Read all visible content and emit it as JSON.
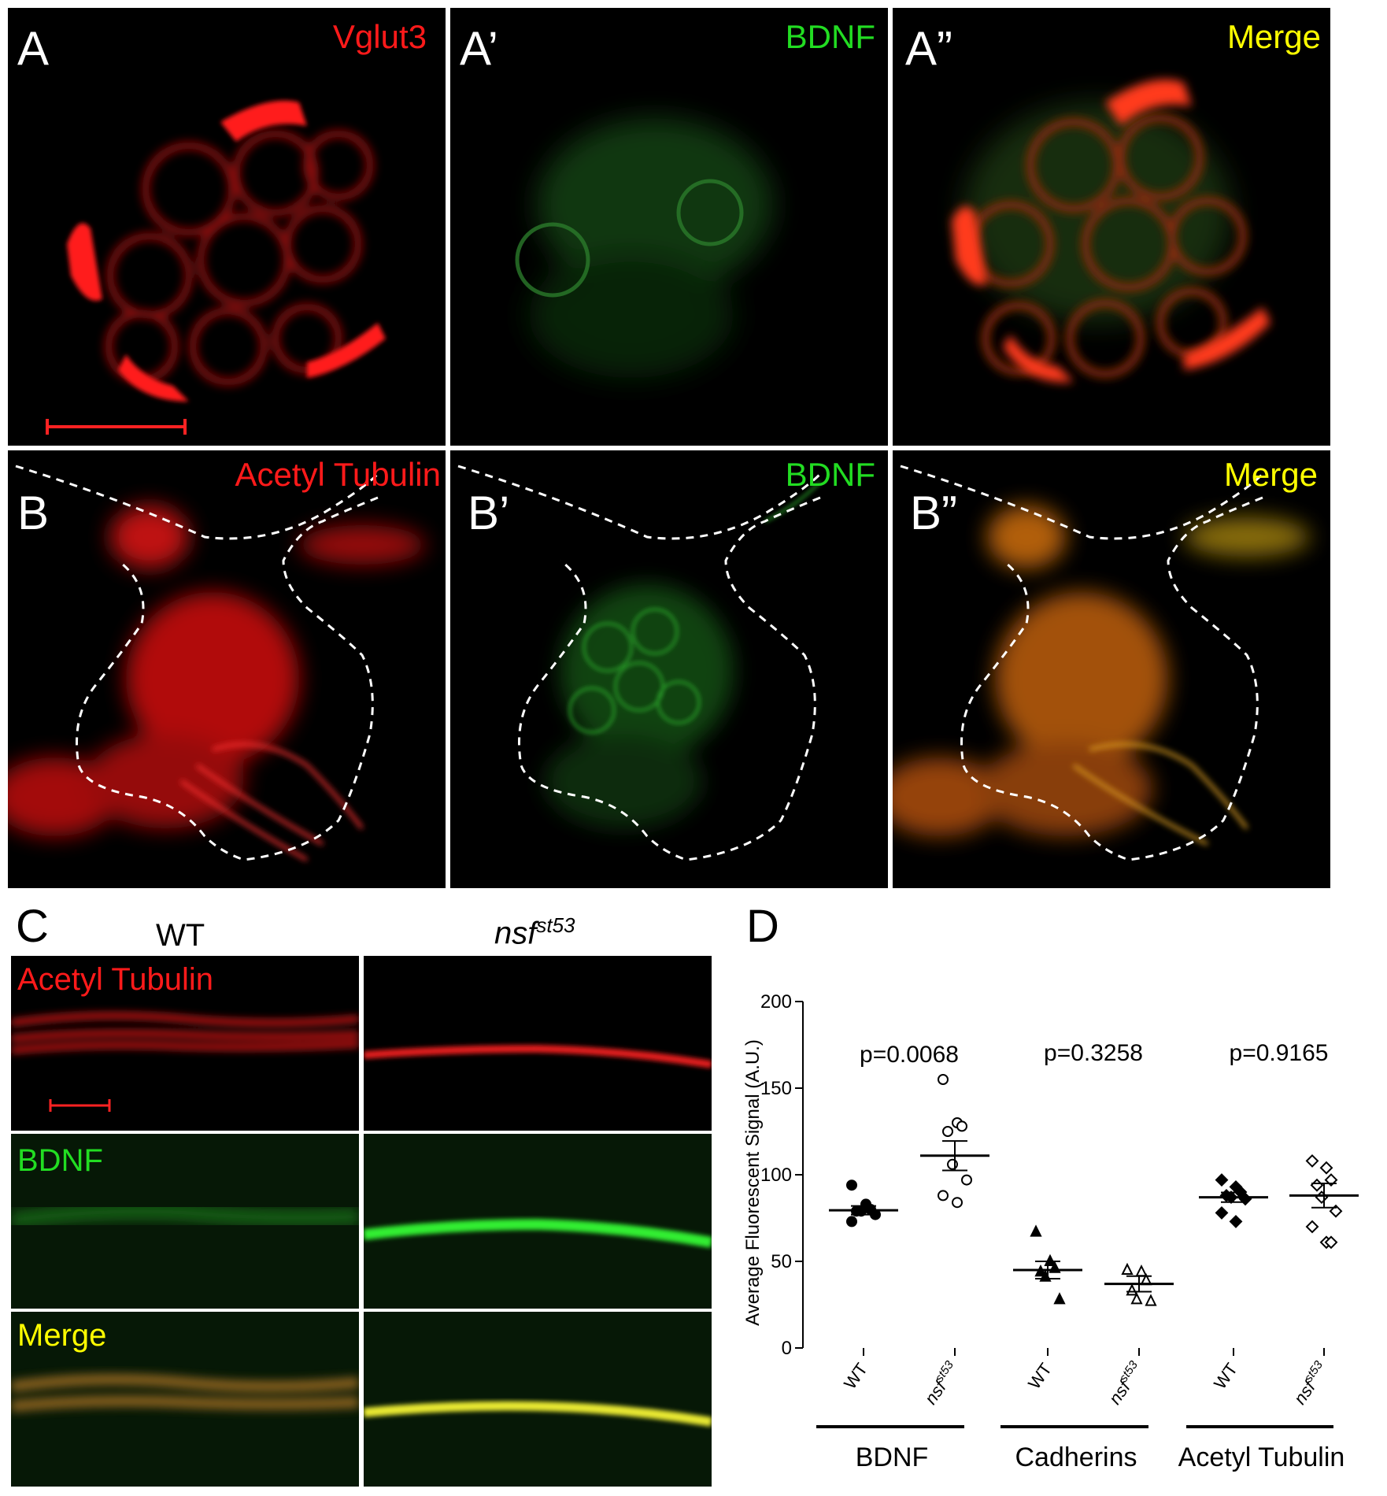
{
  "panel_A": {
    "letter": "A",
    "channel": "Vglut3",
    "color": "#ff1a1a"
  },
  "panel_A1": {
    "letter": "A’",
    "channel": "BDNF",
    "color": "#22dd22"
  },
  "panel_A2": {
    "letter": "A”",
    "channel": "Merge",
    "color": "#ffff00"
  },
  "panel_B": {
    "letter": "B",
    "channel": "Acetyl Tubulin",
    "color": "#ff1a1a"
  },
  "panel_B1": {
    "letter": "B’",
    "channel": "BDNF",
    "color": "#22dd22"
  },
  "panel_B2": {
    "letter": "B”",
    "channel": "Merge",
    "color": "#ffff00"
  },
  "panel_C": {
    "letter": "C",
    "col_wt": "WT",
    "col_mut_base": "nsf",
    "col_mut_sup": "st53",
    "row_labels": [
      "Acetyl Tubulin",
      "BDNF",
      "Merge"
    ]
  },
  "panel_D": {
    "letter": "D"
  },
  "chart_data": {
    "type": "scatter",
    "ylabel": "Average Fluorescent Signal (A.U.)",
    "ylim": [
      0,
      200
    ],
    "yticks": [
      0,
      50,
      100,
      150,
      200
    ],
    "groups": [
      {
        "name": "BDNF",
        "p_value": "p=0.0068",
        "series": [
          {
            "name": "WT",
            "marker": "filled-circle",
            "values": [
              94,
              83,
              80,
              79,
              79,
              77,
              73
            ],
            "mean": 79.5,
            "sem": 2.5
          },
          {
            "name": "nsfst53",
            "marker": "open-circle",
            "values": [
              155,
              130,
              128,
              125,
              106,
              97,
              88,
              84
            ],
            "mean": 111,
            "sem": 8.5
          }
        ]
      },
      {
        "name": "Cadherins",
        "p_value": "p=0.3258",
        "series": [
          {
            "name": "WT",
            "marker": "filled-triangle",
            "values": [
              67,
              50,
              46,
              44,
              41,
              28
            ],
            "mean": 45,
            "sem": 5
          },
          {
            "name": "nsfst53",
            "marker": "open-triangle",
            "values": [
              45,
              44,
              39,
              33,
              28,
              27
            ],
            "mean": 37,
            "sem": 4.5
          }
        ]
      },
      {
        "name": "Acetyl Tubulin",
        "p_value": "p=0.9165",
        "series": [
          {
            "name": "WT",
            "marker": "filled-diamond",
            "values": [
              97,
              93,
              90,
              88,
              87,
              86,
              78,
              73
            ],
            "mean": 87,
            "sem": 2.8
          },
          {
            "name": "nsfst53",
            "marker": "open-diamond",
            "values": [
              108,
              104,
              97,
              94,
              87,
              79,
              70,
              61,
              61
            ],
            "mean": 88,
            "sem": 7
          }
        ]
      }
    ],
    "xtick_wt": "WT",
    "xtick_mut_base": "nsf",
    "xtick_mut_sup": "st53"
  }
}
